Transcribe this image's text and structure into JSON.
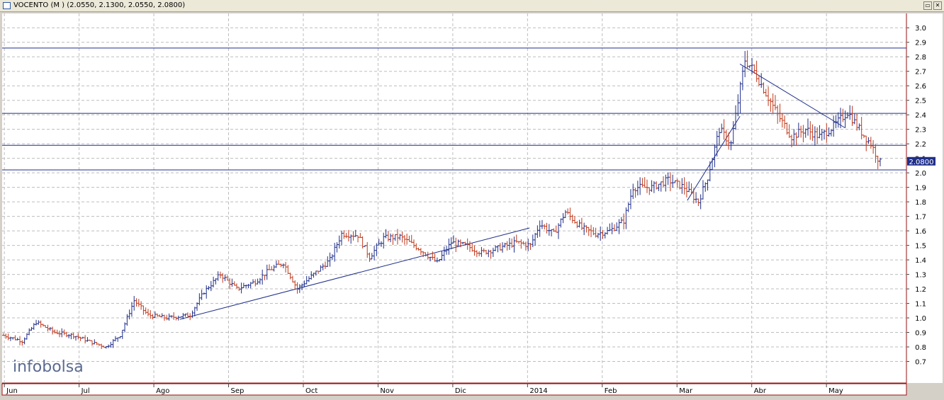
{
  "window": {
    "title": "VOCENTO (M ) (2.0550, 2.1300, 2.0550, 2.0800)",
    "buttons": [
      "restore",
      "close"
    ]
  },
  "watermark": "infobolsa",
  "chart_data": {
    "type": "ohlc",
    "symbol": "VOCENTO",
    "last_price": "2.0800",
    "ylim": [
      0.6,
      3.05
    ],
    "yticks": [
      "3.0",
      "2.9",
      "2.8",
      "2.7",
      "2.6",
      "2.5",
      "2.4",
      "2.3",
      "2.2",
      "2.1",
      "2.0",
      "1.9",
      "1.8",
      "1.7",
      "1.6",
      "1.5",
      "1.4",
      "1.3",
      "1.2",
      "1.1",
      "1.0",
      "0.9",
      "0.8",
      "0.7"
    ],
    "months": [
      "Jun",
      "Jul",
      "Ago",
      "Sep",
      "Oct",
      "Nov",
      "Dic",
      "2014",
      "Feb",
      "Mar",
      "Abr",
      "May"
    ],
    "grid": true,
    "colors": {
      "up": "#1f2f8a",
      "down": "#c0391b",
      "lines": "#1f2f8a",
      "axis_frame": "#9a1010",
      "background": "#ffffff"
    },
    "path_points": [
      [
        0,
        0.88
      ],
      [
        8,
        0.84
      ],
      [
        14,
        0.97
      ],
      [
        22,
        0.9
      ],
      [
        30,
        0.88
      ],
      [
        38,
        0.83
      ],
      [
        44,
        0.8
      ],
      [
        50,
        0.88
      ],
      [
        56,
        1.12
      ],
      [
        62,
        1.02
      ],
      [
        70,
        1.0
      ],
      [
        80,
        1.02
      ],
      [
        86,
        1.18
      ],
      [
        93,
        1.3
      ],
      [
        100,
        1.2
      ],
      [
        108,
        1.25
      ],
      [
        114,
        1.33
      ],
      [
        120,
        1.38
      ],
      [
        126,
        1.2
      ],
      [
        133,
        1.3
      ],
      [
        140,
        1.4
      ],
      [
        145,
        1.58
      ],
      [
        152,
        1.57
      ],
      [
        157,
        1.42
      ],
      [
        163,
        1.55
      ],
      [
        170,
        1.56
      ],
      [
        178,
        1.48
      ],
      [
        186,
        1.38
      ],
      [
        192,
        1.52
      ],
      [
        198,
        1.5
      ],
      [
        205,
        1.45
      ],
      [
        212,
        1.48
      ],
      [
        220,
        1.52
      ],
      [
        226,
        1.5
      ],
      [
        230,
        1.65
      ],
      [
        236,
        1.58
      ],
      [
        241,
        1.73
      ],
      [
        248,
        1.62
      ],
      [
        254,
        1.58
      ],
      [
        260,
        1.6
      ],
      [
        266,
        1.67
      ],
      [
        270,
        1.9
      ],
      [
        278,
        1.9
      ],
      [
        285,
        1.95
      ],
      [
        292,
        1.9
      ],
      [
        298,
        1.8
      ],
      [
        302,
        1.97
      ],
      [
        307,
        2.3
      ],
      [
        312,
        2.2
      ],
      [
        318,
        2.78
      ],
      [
        322,
        2.7
      ],
      [
        327,
        2.55
      ],
      [
        332,
        2.4
      ],
      [
        338,
        2.25
      ],
      [
        344,
        2.3
      ],
      [
        350,
        2.25
      ],
      [
        356,
        2.32
      ],
      [
        362,
        2.42
      ],
      [
        368,
        2.28
      ],
      [
        372,
        2.2
      ],
      [
        376,
        2.07
      ]
    ],
    "trendlines": [
      {
        "from": [
          0.0,
          0.99
        ],
        "to": [
          0.6,
          1.62
        ]
      },
      {
        "from": [
          0.78,
          1.81
        ],
        "to": [
          0.84,
          2.39
        ]
      },
      {
        "from": [
          0.84,
          2.75
        ],
        "to": [
          0.96,
          2.31
        ]
      }
    ],
    "horizontal_levels": [
      2.86,
      2.41,
      2.19,
      2.02
    ]
  }
}
